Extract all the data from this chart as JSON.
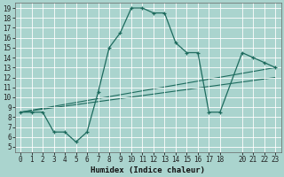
{
  "xlabel": "Humidex (Indice chaleur)",
  "bg_color": "#aad4ce",
  "line_color": "#1e6b5e",
  "grid_color": "#ffffff",
  "curve": {
    "x": [
      0,
      1,
      2,
      3,
      4,
      5,
      6,
      7,
      8,
      9,
      10,
      11,
      12,
      13,
      14,
      15,
      16,
      17,
      18,
      20,
      21,
      22,
      23
    ],
    "y": [
      8.5,
      8.5,
      8.5,
      6.5,
      6.5,
      5.5,
      6.5,
      10.5,
      15.0,
      16.5,
      19.0,
      19.0,
      18.5,
      18.5,
      15.5,
      14.5,
      14.5,
      8.5,
      8.5,
      14.5,
      14.0,
      13.5,
      13.0
    ]
  },
  "line1": {
    "x": [
      0,
      23
    ],
    "y": [
      8.5,
      13.0
    ]
  },
  "line2": {
    "x": [
      0,
      23
    ],
    "y": [
      8.5,
      12.0
    ]
  },
  "xlim": [
    -0.5,
    23.5
  ],
  "ylim": [
    4.5,
    19.5
  ],
  "xticks": [
    0,
    1,
    2,
    3,
    4,
    5,
    6,
    7,
    8,
    9,
    10,
    11,
    12,
    13,
    14,
    15,
    16,
    17,
    18,
    20,
    21,
    22,
    23
  ],
  "yticks": [
    5,
    6,
    7,
    8,
    9,
    10,
    11,
    12,
    13,
    14,
    15,
    16,
    17,
    18,
    19
  ],
  "tick_fontsize": 5.5,
  "xlabel_fontsize": 6.5
}
